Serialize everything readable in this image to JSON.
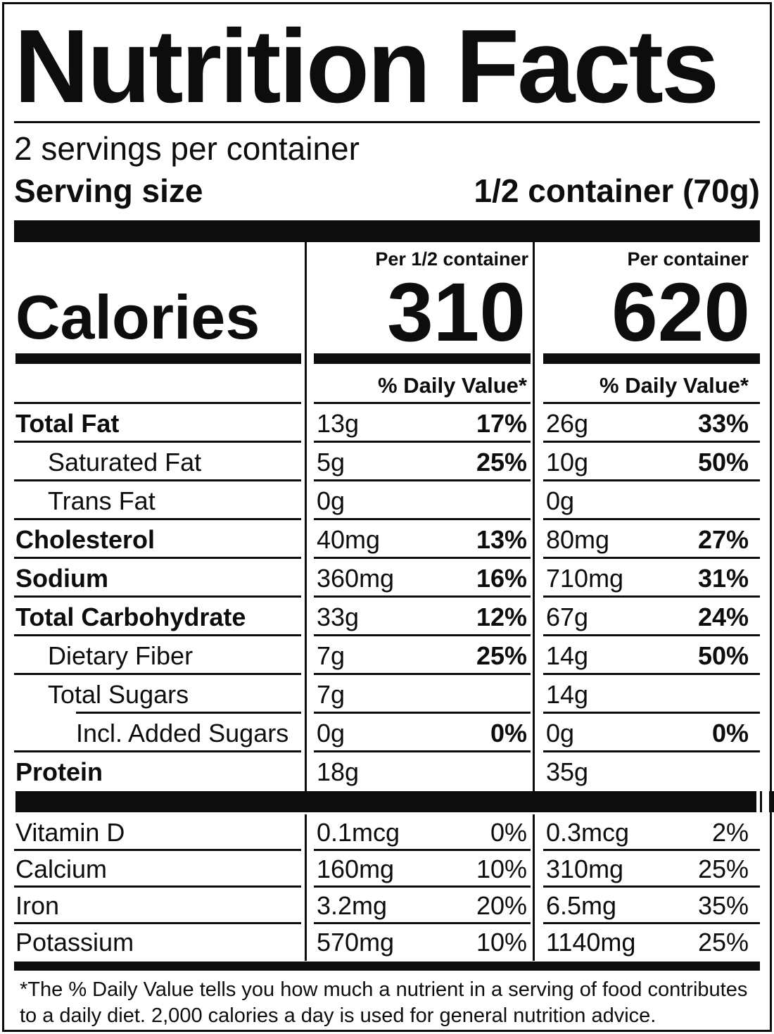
{
  "label": {
    "title": "Nutrition Facts",
    "servings_per_container": "2 servings per container",
    "serving_size": {
      "label": "Serving size",
      "value": "1/2 container (70g)"
    },
    "calories": {
      "label": "Calories",
      "col1": {
        "header": "Per 1/2 container",
        "value": "310"
      },
      "col2": {
        "header": "Per container",
        "value": "620"
      }
    },
    "daily_value_header": "% Daily Value*",
    "nutrients": [
      {
        "name": "Total Fat",
        "amount1": "13g",
        "dv1": "17%",
        "amount2": "26g",
        "dv2": "33%"
      },
      {
        "name": "Saturated Fat",
        "amount1": "5g",
        "dv1": "25%",
        "amount2": "10g",
        "dv2": "50%"
      },
      {
        "name": "Trans Fat",
        "amount1": "0g",
        "amount2": "0g"
      },
      {
        "name": "Cholesterol",
        "amount1": "40mg",
        "dv1": "13%",
        "amount2": "80mg",
        "dv2": "27%"
      },
      {
        "name": "Sodium",
        "amount1": "360mg",
        "dv1": "16%",
        "amount2": "710mg",
        "dv2": "31%"
      },
      {
        "name": "Total Carbohydrate",
        "amount1": "33g",
        "dv1": "12%",
        "amount2": "67g",
        "dv2": "24%"
      },
      {
        "name": "Dietary Fiber",
        "amount1": "7g",
        "dv1": "25%",
        "amount2": "14g",
        "dv2": "50%"
      },
      {
        "name": "Total Sugars",
        "amount1": "7g",
        "amount2": "14g"
      },
      {
        "name": "Incl. Added Sugars",
        "amount1": "0g",
        "dv1": "0%",
        "amount2": "0g",
        "dv2": "0%"
      },
      {
        "name": "Protein",
        "amount1": "18g",
        "amount2": "35g"
      }
    ],
    "micronutrients": [
      {
        "name": "Vitamin D",
        "amount1": "0.1mcg",
        "dv1": "0%",
        "amount2": "0.3mcg",
        "dv2": "2%"
      },
      {
        "name": "Calcium",
        "amount1": "160mg",
        "dv1": "10%",
        "amount2": "310mg",
        "dv2": "25%"
      },
      {
        "name": "Iron",
        "amount1": "3.2mg",
        "dv1": "20%",
        "amount2": "6.5mg",
        "dv2": "35%"
      },
      {
        "name": "Potassium",
        "amount1": "570mg",
        "dv1": "10%",
        "amount2": "1140mg",
        "dv2": "25%"
      }
    ],
    "footnote": "*The % Daily Value tells you how much a nutrient in a serving of food contributes to a daily diet. 2,000 calories a day is used for general nutrition advice."
  }
}
